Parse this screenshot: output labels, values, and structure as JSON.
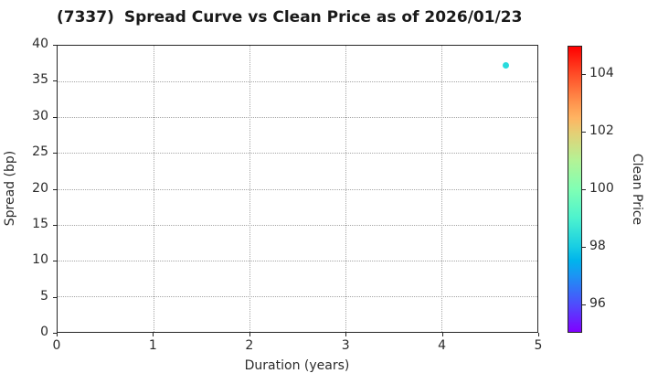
{
  "figure": {
    "title_ticker": "(7337)",
    "title_text": "Spread Curve vs Clean Price as of 2026/01/23"
  },
  "chart_data": {
    "type": "scatter",
    "title": "(7337) Spread Curve vs Clean Price as of 2026/01/23",
    "xlabel": "Duration (years)",
    "ylabel": "Spread (bp)",
    "xlim": [
      0,
      5
    ],
    "ylim": [
      0,
      40
    ],
    "x_ticks": [
      0,
      1,
      2,
      3,
      4,
      5
    ],
    "y_ticks": [
      0,
      5,
      10,
      15,
      20,
      25,
      30,
      35,
      40
    ],
    "grid": true,
    "point_color": "#29dbdd",
    "series": [
      {
        "name": "spread-points",
        "points": [
          {
            "x": 4.66,
            "y": 37.2,
            "clean_price": 98.3
          }
        ]
      }
    ],
    "colorbar": {
      "label": "Clean Price",
      "vmin": 95,
      "vmax": 105,
      "ticks": [
        96,
        98,
        100,
        102,
        104
      ],
      "colormap": "rainbow",
      "position": "right"
    }
  }
}
